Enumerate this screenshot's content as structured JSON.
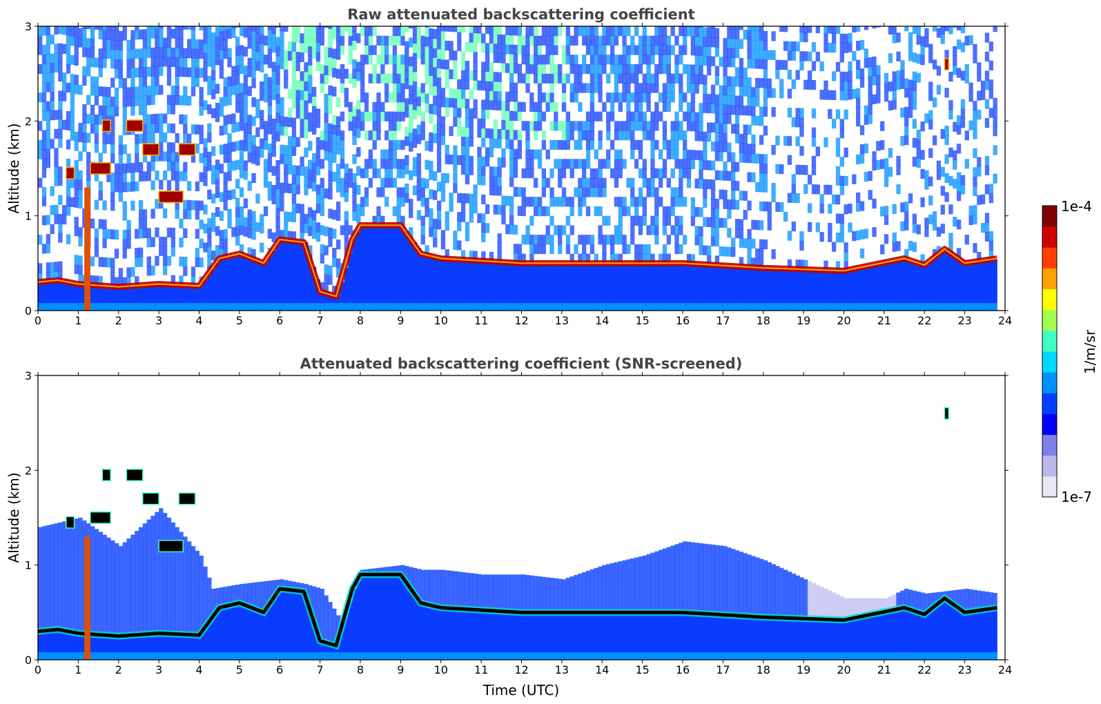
{
  "chart_data": [
    {
      "type": "heatmap",
      "title": "Raw attenuated backscattering coefficient",
      "xlabel": "",
      "ylabel": "Altitude (km)",
      "xlim": [
        0,
        24
      ],
      "ylim": [
        0,
        3
      ],
      "xticks": [
        "0",
        "1",
        "2",
        "3",
        "4",
        "5",
        "6",
        "7",
        "8",
        "9",
        "10",
        "11",
        "12",
        "13",
        "14",
        "15",
        "16",
        "17",
        "18",
        "19",
        "20",
        "21",
        "22",
        "23",
        "24"
      ],
      "yticks": [
        "0",
        "1",
        "2",
        "3"
      ],
      "data_end_hour": 23.8,
      "boundary_layer_top_km": [
        [
          0,
          0.3
        ],
        [
          0.5,
          0.32
        ],
        [
          1,
          0.28
        ],
        [
          2,
          0.25
        ],
        [
          3,
          0.28
        ],
        [
          4,
          0.26
        ],
        [
          4.5,
          0.55
        ],
        [
          5,
          0.6
        ],
        [
          5.6,
          0.5
        ],
        [
          6,
          0.75
        ],
        [
          6.6,
          0.72
        ],
        [
          7,
          0.2
        ],
        [
          7.4,
          0.15
        ],
        [
          7.8,
          0.75
        ],
        [
          8,
          0.9
        ],
        [
          9,
          0.9
        ],
        [
          9.5,
          0.6
        ],
        [
          10,
          0.55
        ],
        [
          12,
          0.5
        ],
        [
          14,
          0.5
        ],
        [
          16,
          0.5
        ],
        [
          18,
          0.45
        ],
        [
          20,
          0.42
        ],
        [
          21.5,
          0.55
        ],
        [
          22,
          0.48
        ],
        [
          22.5,
          0.65
        ],
        [
          23,
          0.5
        ],
        [
          23.8,
          0.55
        ]
      ],
      "cloud_layers": [
        {
          "t0": 1.6,
          "t1": 1.8,
          "alt_km": 1.95
        },
        {
          "t0": 2.2,
          "t1": 2.6,
          "alt_km": 1.95
        },
        {
          "t0": 2.6,
          "t1": 3.0,
          "alt_km": 1.7
        },
        {
          "t0": 1.3,
          "t1": 1.8,
          "alt_km": 1.5
        },
        {
          "t0": 0.7,
          "t1": 0.9,
          "alt_km": 1.45
        },
        {
          "t0": 3.0,
          "t1": 3.6,
          "alt_km": 1.2
        },
        {
          "t0": 3.5,
          "t1": 3.9,
          "alt_km": 1.7
        },
        {
          "t0": 22.5,
          "t1": 22.6,
          "alt_km": 2.6
        }
      ],
      "noise_gradient": "strong noise aloft, weaker noise late day"
    },
    {
      "type": "heatmap",
      "title": "Attenuated backscattering coefficient (SNR-screened)",
      "xlabel": "Time (UTC)",
      "ylabel": "Altitude (km)",
      "xlim": [
        0,
        24
      ],
      "ylim": [
        0,
        3
      ],
      "xticks": [
        "0",
        "1",
        "2",
        "3",
        "4",
        "5",
        "6",
        "7",
        "8",
        "9",
        "10",
        "11",
        "12",
        "13",
        "14",
        "15",
        "16",
        "17",
        "18",
        "19",
        "20",
        "21",
        "22",
        "23",
        "24"
      ],
      "yticks": [
        "0",
        "1",
        "2",
        "3"
      ],
      "data_end_hour": 23.8,
      "screened_top_km": [
        [
          0,
          1.4
        ],
        [
          1,
          1.5
        ],
        [
          2,
          1.2
        ],
        [
          3,
          1.6
        ],
        [
          4,
          1.1
        ],
        [
          4.3,
          0.75
        ],
        [
          5,
          0.8
        ],
        [
          6,
          0.85
        ],
        [
          6.6,
          0.8
        ],
        [
          7,
          0.75
        ],
        [
          7.5,
          0.4
        ],
        [
          8,
          0.95
        ],
        [
          9,
          1.0
        ],
        [
          9.5,
          0.95
        ],
        [
          10,
          0.95
        ],
        [
          11,
          0.9
        ],
        [
          12,
          0.9
        ],
        [
          13,
          0.85
        ],
        [
          14,
          1.0
        ],
        [
          15,
          1.1
        ],
        [
          16,
          1.25
        ],
        [
          17,
          1.2
        ],
        [
          18,
          1.05
        ],
        [
          19,
          0.85
        ],
        [
          20,
          0.65
        ],
        [
          21,
          0.65
        ],
        [
          21.5,
          0.75
        ],
        [
          22,
          0.7
        ],
        [
          23,
          0.75
        ],
        [
          23.8,
          0.7
        ]
      ]
    }
  ],
  "colorbar": {
    "label": "1/m/sr",
    "max_label": "1e-4",
    "min_label": "1e-7",
    "colors": [
      "#e6e6f5",
      "#b8b8ec",
      "#8080ec",
      "#0000ff",
      "#0040ff",
      "#0090ff",
      "#00d8ff",
      "#40ffc0",
      "#a0ff50",
      "#ffff00",
      "#ffa000",
      "#ff4000",
      "#d00000",
      "#800000"
    ]
  }
}
